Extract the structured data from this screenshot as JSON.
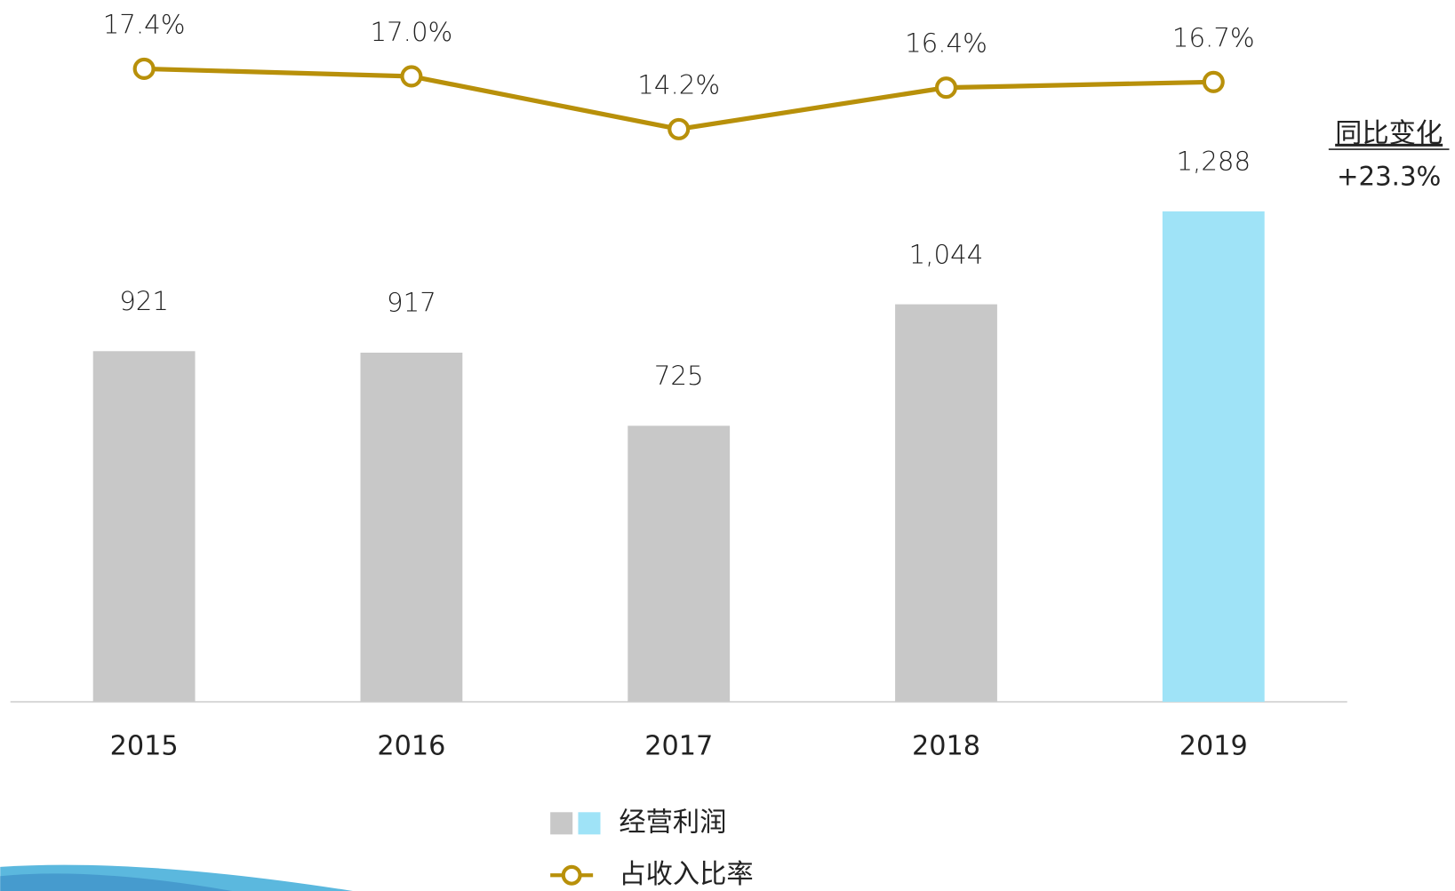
{
  "chart_data": {
    "type": "bar",
    "categories": [
      "2015",
      "2016",
      "2017",
      "2018",
      "2019"
    ],
    "series": [
      {
        "name": "经营利润",
        "type": "bar",
        "colors": [
          "#c8c8c8",
          "#c8c8c8",
          "#c8c8c8",
          "#c8c8c8",
          "#9fe3f7"
        ],
        "values": [
          921,
          917,
          725,
          1044,
          1288
        ],
        "value_labels": [
          "921",
          "917",
          "725",
          "1,044",
          "1,288"
        ]
      },
      {
        "name": "占收入比率",
        "type": "line",
        "axis": "y2",
        "color": "#b8900a",
        "values": [
          17.4,
          17.0,
          14.2,
          16.4,
          16.7
        ],
        "value_labels": [
          "17.4%",
          "17.0%",
          "14.2%",
          "16.4%",
          "16.7%"
        ]
      }
    ],
    "ylim": [
      0,
      1400
    ],
    "y2lim": [
      12,
      18
    ],
    "annotations": [
      "同比变化",
      "+23.3%"
    ]
  }
}
